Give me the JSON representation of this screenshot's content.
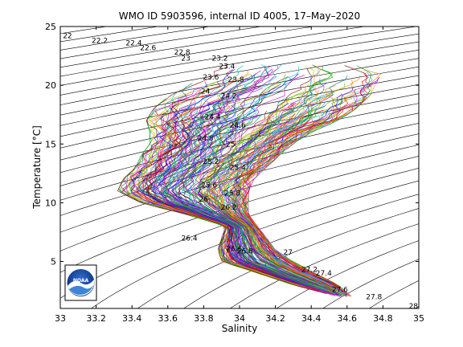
{
  "chart_data": {
    "type": "line",
    "title": "WMO ID 5903596, internal ID 4005, 17–May–2020",
    "xlabel": "Salinity",
    "ylabel": "Temperature [°C]",
    "xlim": [
      33,
      35
    ],
    "ylim": [
      1,
      25
    ],
    "xticks": [
      "33",
      "33.2",
      "33.4",
      "33.6",
      "33.8",
      "34",
      "34.2",
      "34.4",
      "34.6",
      "34.8",
      "35"
    ],
    "yticks": [
      "5",
      "10",
      "15",
      "20",
      "25"
    ],
    "grid": false,
    "legend": "none",
    "density_contours": [
      {
        "label": "22",
        "s": 33.04,
        "t": 24.2
      },
      {
        "label": "22.2",
        "s": 33.22,
        "t": 23.8
      },
      {
        "label": "22.4",
        "s": 33.41,
        "t": 23.6
      },
      {
        "label": "22.6",
        "s": 33.49,
        "t": 23.2
      },
      {
        "label": "22.8",
        "s": 33.68,
        "t": 22.8
      },
      {
        "label": "23",
        "s": 33.7,
        "t": 22.3
      },
      {
        "label": "23.2",
        "s": 33.89,
        "t": 22.3
      },
      {
        "label": "23.4",
        "s": 33.93,
        "t": 21.6
      },
      {
        "label": "23.6",
        "s": 33.84,
        "t": 20.7
      },
      {
        "label": "23.8",
        "s": 33.98,
        "t": 20.5
      },
      {
        "label": "24",
        "s": 33.81,
        "t": 19.5
      },
      {
        "label": "24.2",
        "s": 33.94,
        "t": 19.1
      },
      {
        "label": "24.4",
        "s": 33.85,
        "t": 17.3
      },
      {
        "label": "24.6",
        "s": 33.99,
        "t": 16.6
      },
      {
        "label": "24.8",
        "s": 33.81,
        "t": 15.5
      },
      {
        "label": "25",
        "s": 33.95,
        "t": 15.0
      },
      {
        "label": "25.2",
        "s": 33.84,
        "t": 13.5
      },
      {
        "label": "25.4",
        "s": 33.99,
        "t": 13.0
      },
      {
        "label": "25.6",
        "s": 33.83,
        "t": 11.5
      },
      {
        "label": "25.8",
        "s": 33.96,
        "t": 10.8
      },
      {
        "label": "26",
        "s": 33.8,
        "t": 10.3
      },
      {
        "label": "26.2",
        "s": 33.94,
        "t": 9.6
      },
      {
        "label": "26.4",
        "s": 33.72,
        "t": 7.0
      },
      {
        "label": "26.6",
        "s": 33.97,
        "t": 6.1
      },
      {
        "label": "26.8",
        "s": 34.03,
        "t": 5.9
      },
      {
        "label": "27",
        "s": 34.27,
        "t": 5.8
      },
      {
        "label": "27.2",
        "s": 34.39,
        "t": 4.3
      },
      {
        "label": "27.4",
        "s": 34.47,
        "t": 4.0
      },
      {
        "label": "27.6",
        "s": 34.56,
        "t": 2.6
      },
      {
        "label": "27.8",
        "s": 34.75,
        "t": 2.0
      },
      {
        "label": "28",
        "s": 34.97,
        "t": 1.2
      }
    ],
    "profiles_envelope": {
      "t": [
        2.0,
        3.0,
        4.0,
        5.0,
        6.0,
        7.0,
        8.0,
        9.0,
        10.0,
        11.0,
        12.0,
        13.0,
        14.0,
        15.0,
        16.0,
        17.0,
        18.0,
        19.0,
        20.0,
        21.0,
        22.0
      ],
      "s_min": [
        34.55,
        34.3,
        34.1,
        33.9,
        33.88,
        33.9,
        33.92,
        33.7,
        33.45,
        33.32,
        33.35,
        33.42,
        33.45,
        33.5,
        33.5,
        33.48,
        33.52,
        33.6,
        33.72,
        33.82,
        33.95
      ],
      "s_max": [
        34.63,
        34.55,
        34.42,
        34.3,
        34.2,
        34.15,
        34.1,
        34.05,
        34.05,
        34.05,
        34.08,
        34.15,
        34.22,
        34.3,
        34.4,
        34.55,
        34.65,
        34.72,
        34.78,
        34.8,
        34.6
      ]
    }
  },
  "logo": {
    "text": "NOAA"
  }
}
